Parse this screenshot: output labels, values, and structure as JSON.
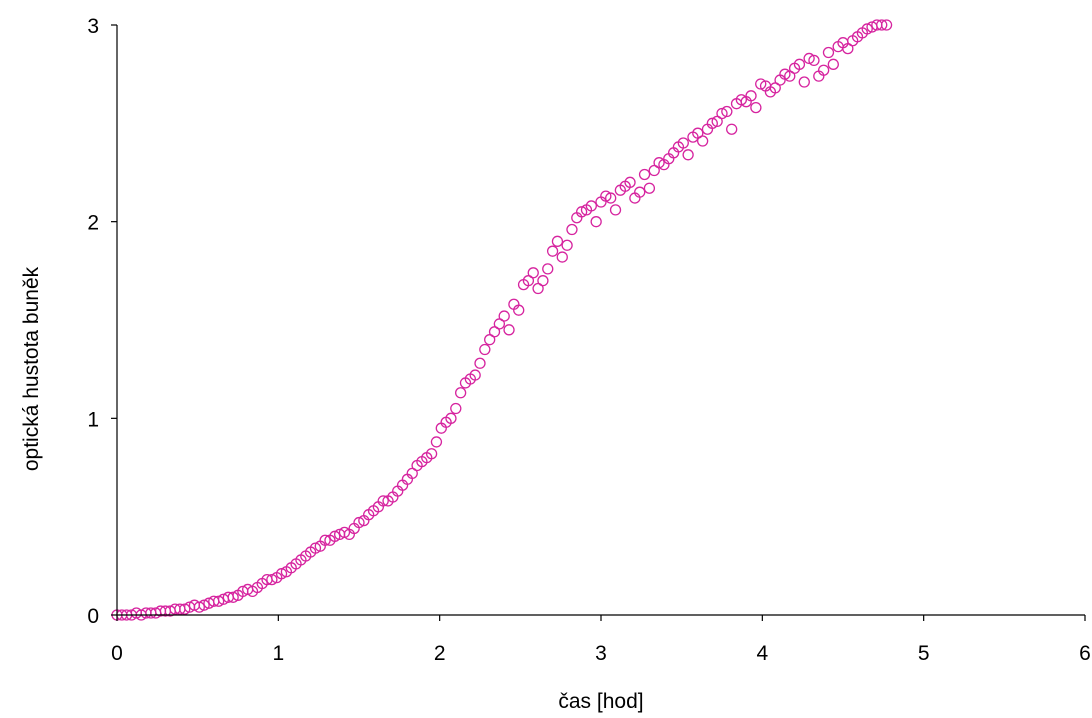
{
  "chart_data": {
    "type": "scatter",
    "xlabel": "čas [hod]",
    "ylabel": "optická hustota buněk",
    "xlim": [
      0,
      6
    ],
    "ylim": [
      0,
      3
    ],
    "x_ticks": [
      "0",
      "1",
      "2",
      "3",
      "4",
      "5",
      "6"
    ],
    "y_ticks": [
      "0",
      "1",
      "2",
      "3"
    ],
    "grid": false,
    "legend": "none",
    "marker": "open-circle",
    "point_color": "#D6249F",
    "series": [
      {
        "points": [
          [
            0.0,
            0.0
          ],
          [
            0.03,
            0.0
          ],
          [
            0.06,
            0.0
          ],
          [
            0.09,
            0.0
          ],
          [
            0.12,
            0.01
          ],
          [
            0.15,
            0.0
          ],
          [
            0.18,
            0.01
          ],
          [
            0.21,
            0.01
          ],
          [
            0.24,
            0.01
          ],
          [
            0.27,
            0.02
          ],
          [
            0.3,
            0.02
          ],
          [
            0.33,
            0.02
          ],
          [
            0.36,
            0.03
          ],
          [
            0.39,
            0.03
          ],
          [
            0.42,
            0.03
          ],
          [
            0.45,
            0.04
          ],
          [
            0.48,
            0.05
          ],
          [
            0.51,
            0.04
          ],
          [
            0.54,
            0.05
          ],
          [
            0.57,
            0.06
          ],
          [
            0.6,
            0.07
          ],
          [
            0.63,
            0.07
          ],
          [
            0.66,
            0.08
          ],
          [
            0.69,
            0.09
          ],
          [
            0.72,
            0.09
          ],
          [
            0.75,
            0.1
          ],
          [
            0.78,
            0.12
          ],
          [
            0.81,
            0.13
          ],
          [
            0.84,
            0.12
          ],
          [
            0.87,
            0.14
          ],
          [
            0.9,
            0.16
          ],
          [
            0.93,
            0.18
          ],
          [
            0.96,
            0.18
          ],
          [
            0.99,
            0.19
          ],
          [
            1.02,
            0.21
          ],
          [
            1.05,
            0.22
          ],
          [
            1.08,
            0.24
          ],
          [
            1.11,
            0.26
          ],
          [
            1.14,
            0.28
          ],
          [
            1.17,
            0.3
          ],
          [
            1.2,
            0.32
          ],
          [
            1.23,
            0.34
          ],
          [
            1.26,
            0.35
          ],
          [
            1.29,
            0.38
          ],
          [
            1.32,
            0.38
          ],
          [
            1.35,
            0.4
          ],
          [
            1.38,
            0.41
          ],
          [
            1.41,
            0.42
          ],
          [
            1.44,
            0.41
          ],
          [
            1.47,
            0.44
          ],
          [
            1.5,
            0.47
          ],
          [
            1.53,
            0.48
          ],
          [
            1.56,
            0.51
          ],
          [
            1.59,
            0.53
          ],
          [
            1.62,
            0.55
          ],
          [
            1.65,
            0.58
          ],
          [
            1.68,
            0.58
          ],
          [
            1.71,
            0.6
          ],
          [
            1.74,
            0.63
          ],
          [
            1.77,
            0.66
          ],
          [
            1.8,
            0.69
          ],
          [
            1.83,
            0.72
          ],
          [
            1.86,
            0.76
          ],
          [
            1.89,
            0.78
          ],
          [
            1.92,
            0.8
          ],
          [
            1.95,
            0.82
          ],
          [
            1.98,
            0.88
          ],
          [
            2.01,
            0.95
          ],
          [
            2.04,
            0.98
          ],
          [
            2.07,
            1.0
          ],
          [
            2.1,
            1.05
          ],
          [
            2.13,
            1.13
          ],
          [
            2.16,
            1.18
          ],
          [
            2.19,
            1.2
          ],
          [
            2.22,
            1.22
          ],
          [
            2.25,
            1.28
          ],
          [
            2.28,
            1.35
          ],
          [
            2.31,
            1.4
          ],
          [
            2.34,
            1.44
          ],
          [
            2.37,
            1.48
          ],
          [
            2.4,
            1.52
          ],
          [
            2.43,
            1.45
          ],
          [
            2.46,
            1.58
          ],
          [
            2.49,
            1.55
          ],
          [
            2.52,
            1.68
          ],
          [
            2.55,
            1.7
          ],
          [
            2.58,
            1.74
          ],
          [
            2.61,
            1.66
          ],
          [
            2.64,
            1.7
          ],
          [
            2.67,
            1.76
          ],
          [
            2.7,
            1.85
          ],
          [
            2.73,
            1.9
          ],
          [
            2.76,
            1.82
          ],
          [
            2.79,
            1.88
          ],
          [
            2.82,
            1.96
          ],
          [
            2.85,
            2.02
          ],
          [
            2.88,
            2.05
          ],
          [
            2.91,
            2.06
          ],
          [
            2.94,
            2.08
          ],
          [
            2.97,
            2.0
          ],
          [
            3.0,
            2.1
          ],
          [
            3.03,
            2.13
          ],
          [
            3.06,
            2.12
          ],
          [
            3.09,
            2.06
          ],
          [
            3.12,
            2.16
          ],
          [
            3.15,
            2.18
          ],
          [
            3.18,
            2.2
          ],
          [
            3.21,
            2.12
          ],
          [
            3.24,
            2.15
          ],
          [
            3.27,
            2.24
          ],
          [
            3.3,
            2.17
          ],
          [
            3.33,
            2.26
          ],
          [
            3.36,
            2.3
          ],
          [
            3.39,
            2.29
          ],
          [
            3.42,
            2.32
          ],
          [
            3.45,
            2.35
          ],
          [
            3.48,
            2.38
          ],
          [
            3.51,
            2.4
          ],
          [
            3.54,
            2.34
          ],
          [
            3.57,
            2.43
          ],
          [
            3.6,
            2.45
          ],
          [
            3.63,
            2.41
          ],
          [
            3.66,
            2.47
          ],
          [
            3.69,
            2.5
          ],
          [
            3.72,
            2.51
          ],
          [
            3.75,
            2.55
          ],
          [
            3.78,
            2.56
          ],
          [
            3.81,
            2.47
          ],
          [
            3.84,
            2.6
          ],
          [
            3.87,
            2.62
          ],
          [
            3.9,
            2.61
          ],
          [
            3.93,
            2.64
          ],
          [
            3.96,
            2.58
          ],
          [
            3.99,
            2.7
          ],
          [
            4.02,
            2.69
          ],
          [
            4.05,
            2.66
          ],
          [
            4.08,
            2.68
          ],
          [
            4.11,
            2.72
          ],
          [
            4.14,
            2.75
          ],
          [
            4.17,
            2.74
          ],
          [
            4.2,
            2.78
          ],
          [
            4.23,
            2.8
          ],
          [
            4.26,
            2.71
          ],
          [
            4.29,
            2.83
          ],
          [
            4.32,
            2.82
          ],
          [
            4.35,
            2.74
          ],
          [
            4.38,
            2.77
          ],
          [
            4.41,
            2.86
          ],
          [
            4.44,
            2.8
          ],
          [
            4.47,
            2.89
          ],
          [
            4.5,
            2.91
          ],
          [
            4.53,
            2.88
          ],
          [
            4.56,
            2.92
          ],
          [
            4.59,
            2.94
          ],
          [
            4.62,
            2.96
          ],
          [
            4.65,
            2.98
          ],
          [
            4.68,
            2.99
          ],
          [
            4.71,
            3.0
          ],
          [
            4.74,
            3.0
          ],
          [
            4.77,
            3.0
          ]
        ]
      }
    ]
  }
}
